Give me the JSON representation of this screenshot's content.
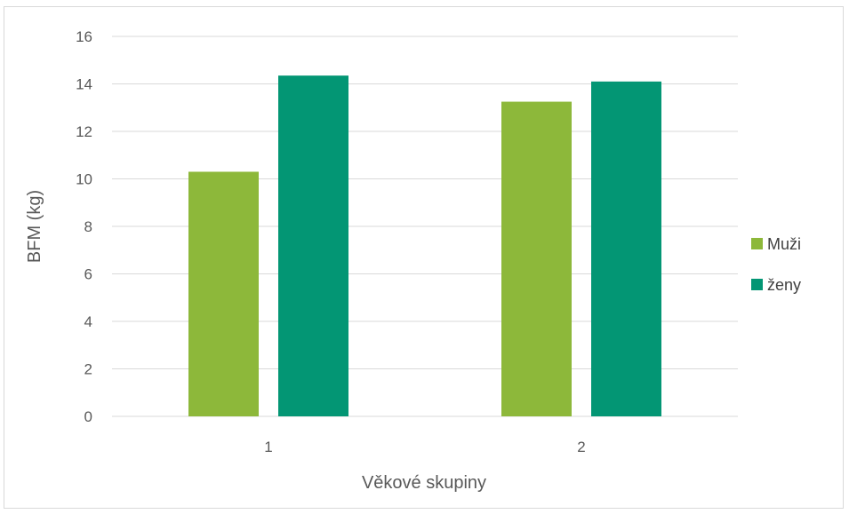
{
  "chart_data": {
    "type": "bar",
    "title": "",
    "xlabel": "Věkové skupiny",
    "ylabel": "BFM (kg)",
    "categories": [
      "1",
      "2"
    ],
    "series": [
      {
        "name": "Muži",
        "values": [
          10.3,
          13.25
        ],
        "color": "#8db83a"
      },
      {
        "name": "ženy",
        "values": [
          14.35,
          14.1
        ],
        "color": "#039674"
      }
    ],
    "ylim": [
      0,
      16
    ],
    "yticks": [
      "0",
      "2",
      "4",
      "6",
      "8",
      "10",
      "12",
      "14",
      "16"
    ],
    "grid": true,
    "legend_position": "right"
  }
}
